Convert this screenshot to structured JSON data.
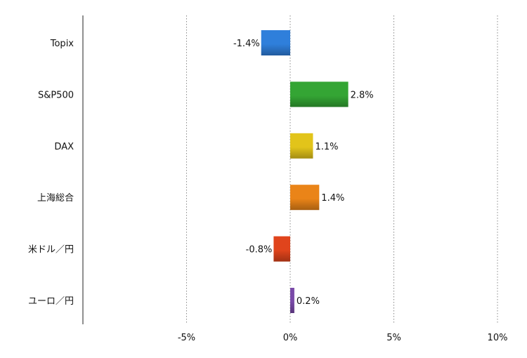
{
  "chart_data": {
    "type": "bar",
    "orientation": "horizontal",
    "categories": [
      "Topix",
      "S&P500",
      "DAX",
      "上海総合",
      "米ドル／円",
      "ユーロ／円"
    ],
    "values": [
      -1.4,
      2.8,
      1.1,
      1.4,
      -0.8,
      0.2
    ],
    "value_labels": [
      "-1.4%",
      "2.8%",
      "1.1%",
      "1.4%",
      "-0.8%",
      "0.2%"
    ],
    "bar_colors": [
      "#2f7fdb",
      "#34a534",
      "#e2c41a",
      "#ea8418",
      "#e0441c",
      "#7a4aa8"
    ],
    "xlim": [
      -10,
      10
    ],
    "x_ticks": [
      -5,
      0,
      5,
      10
    ],
    "x_tick_labels": [
      "-5%",
      "0%",
      "5%",
      "10%"
    ],
    "grid": "vertical dotted",
    "legend": "none",
    "title": "",
    "xlabel": "",
    "ylabel": ""
  }
}
